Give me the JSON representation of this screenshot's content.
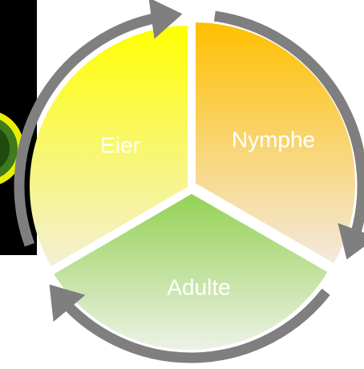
{
  "stages": [
    "Eier",
    "Nymphe",
    "Adulte"
  ]
}
